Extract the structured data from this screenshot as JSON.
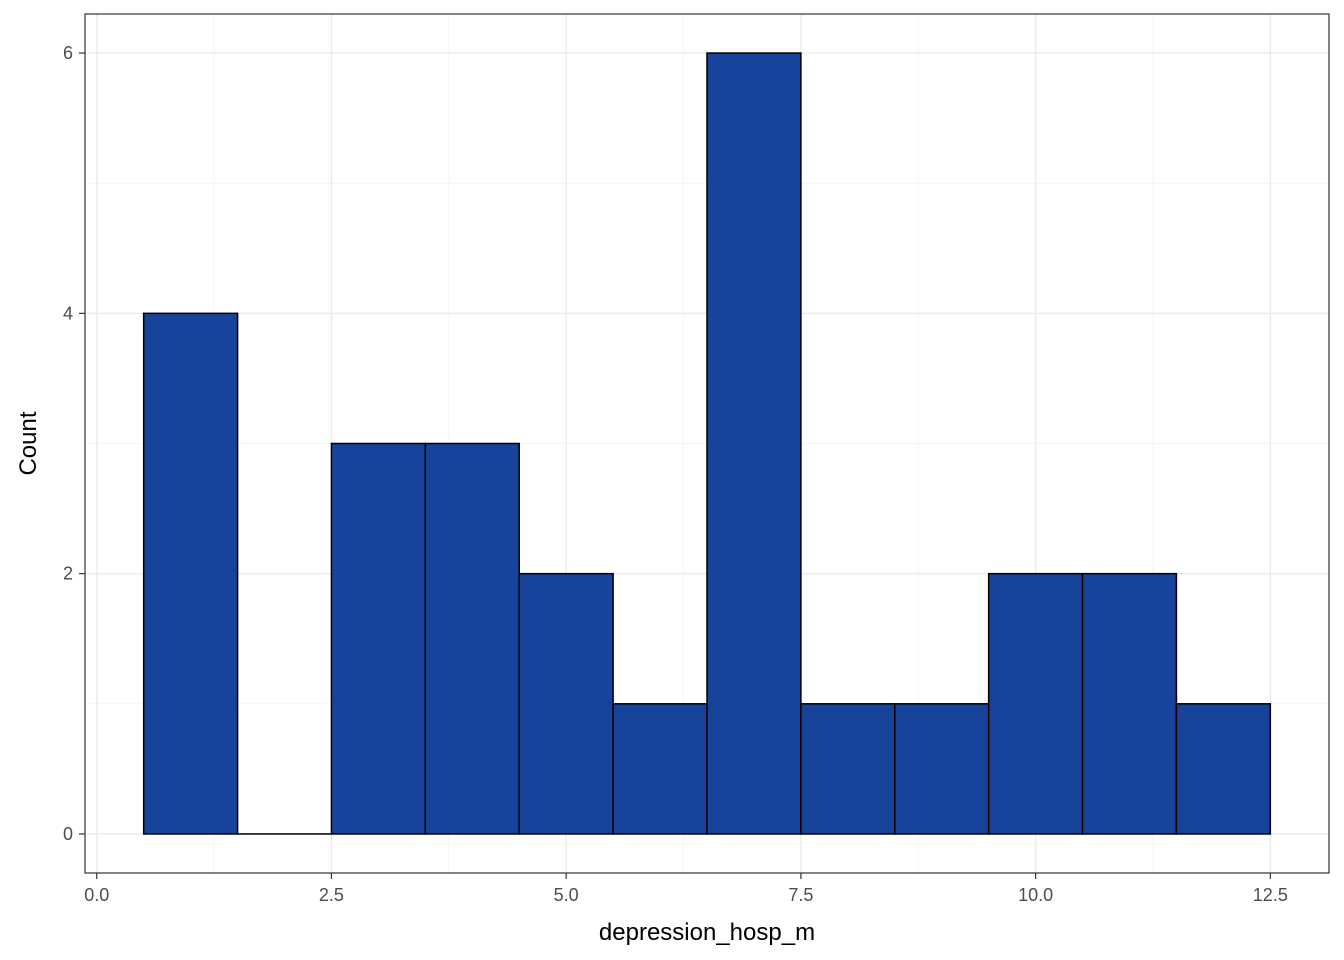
{
  "chart_data": {
    "type": "bar",
    "title": "",
    "xlabel": "depression_hosp_m",
    "ylabel": "Count",
    "xlim": [
      -0.125,
      13.125
    ],
    "ylim": [
      -0.3,
      6.3
    ],
    "x_ticks": [
      0.0,
      2.5,
      5.0,
      7.5,
      10.0,
      12.5
    ],
    "x_tick_labels": [
      "0.0",
      "2.5",
      "5.0",
      "7.5",
      "10.0",
      "12.5"
    ],
    "y_ticks": [
      0,
      2,
      4,
      6
    ],
    "y_tick_labels": [
      "0",
      "2",
      "4",
      "6"
    ],
    "bin_width": 1,
    "bins": [
      {
        "x_start": 0.5,
        "x_end": 1.5,
        "count": 4
      },
      {
        "x_start": 1.5,
        "x_end": 2.5,
        "count": 0
      },
      {
        "x_start": 2.5,
        "x_end": 3.5,
        "count": 3
      },
      {
        "x_start": 3.5,
        "x_end": 4.5,
        "count": 3
      },
      {
        "x_start": 4.5,
        "x_end": 5.5,
        "count": 2
      },
      {
        "x_start": 5.5,
        "x_end": 6.5,
        "count": 1
      },
      {
        "x_start": 6.5,
        "x_end": 7.5,
        "count": 6
      },
      {
        "x_start": 7.5,
        "x_end": 8.5,
        "count": 1
      },
      {
        "x_start": 8.5,
        "x_end": 9.5,
        "count": 1
      },
      {
        "x_start": 9.5,
        "x_end": 10.5,
        "count": 2
      },
      {
        "x_start": 10.5,
        "x_end": 11.5,
        "count": 2
      },
      {
        "x_start": 11.5,
        "x_end": 12.5,
        "count": 1
      }
    ],
    "fill_color": "#18439a",
    "edge_color": "#000000",
    "grid": true,
    "legend": "none"
  }
}
